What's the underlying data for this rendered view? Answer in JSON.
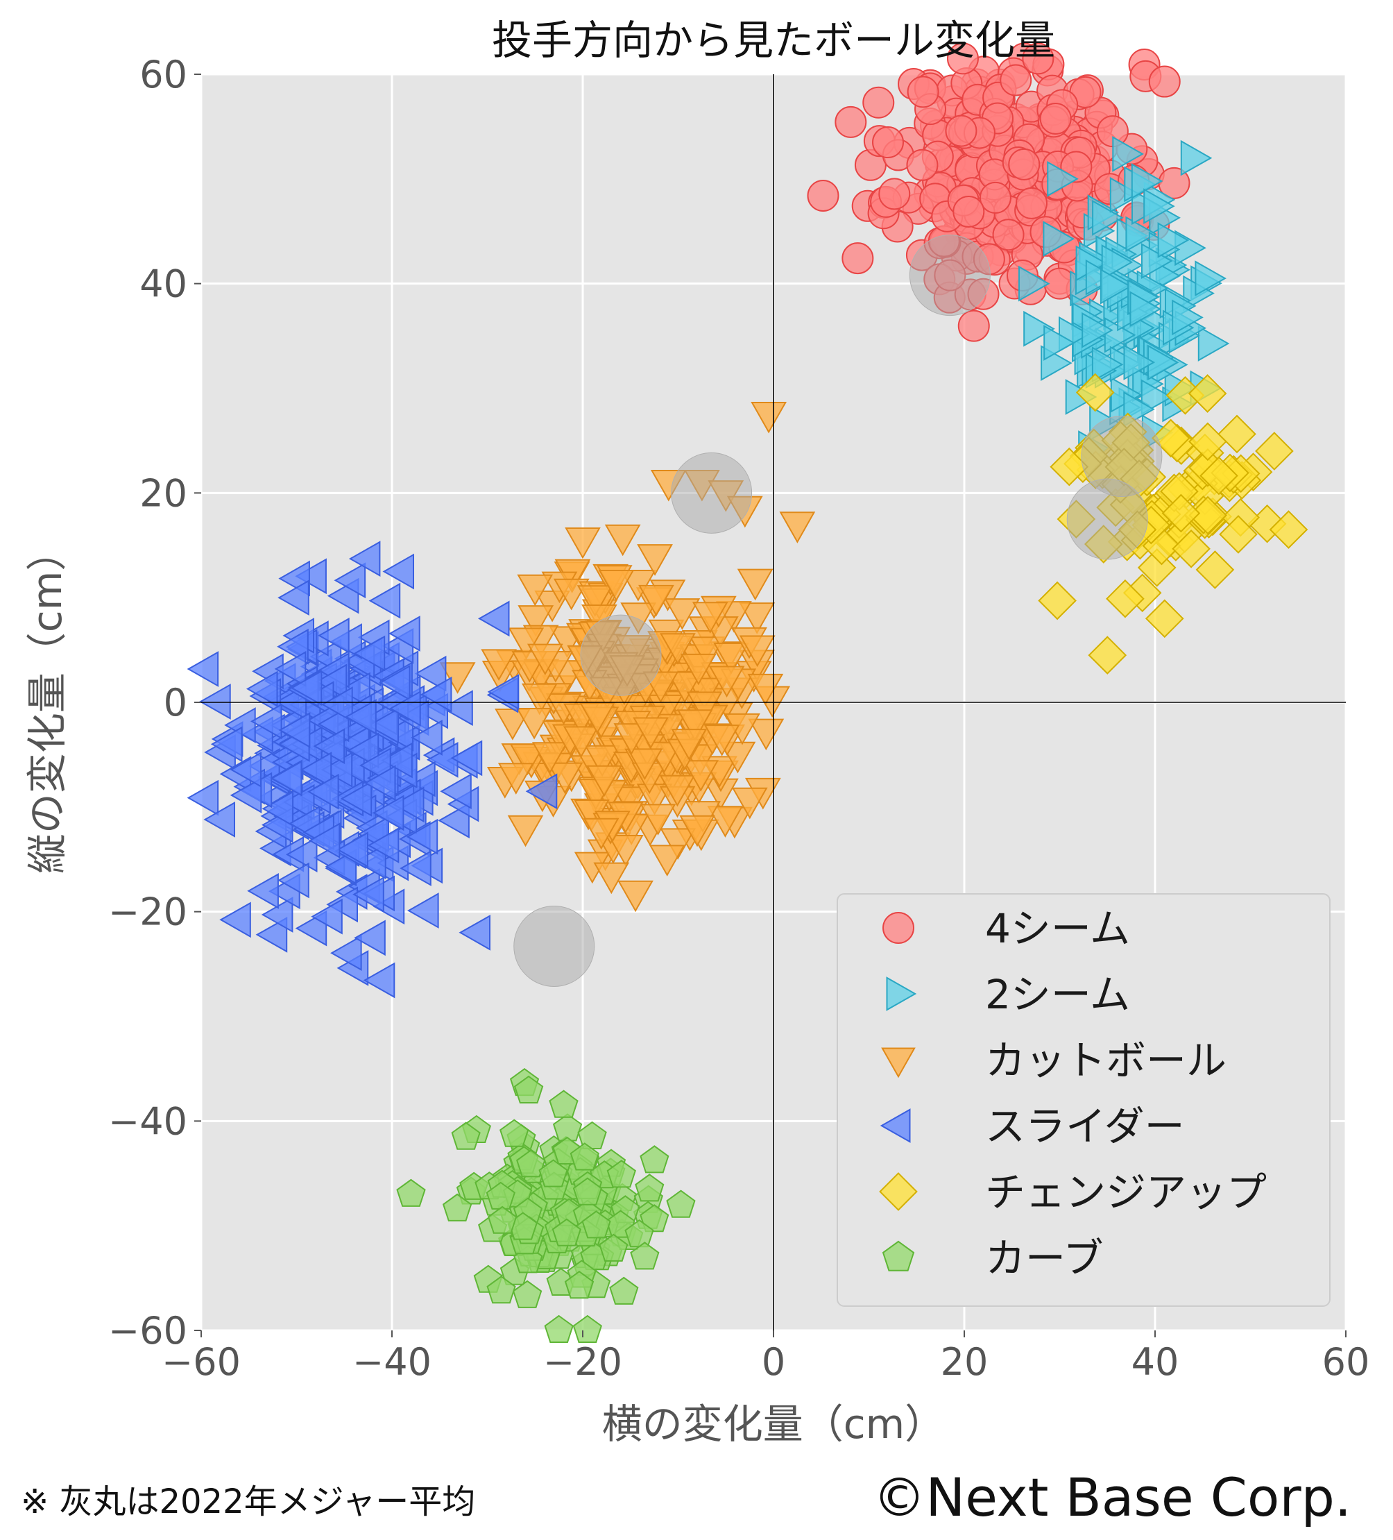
{
  "chart_data": {
    "type": "scatter",
    "title": "投手方向から見たボール変化量",
    "xlabel": "横の変化量（cm）",
    "ylabel": "縦の変化量（cm）",
    "xlim": [
      -60,
      60
    ],
    "ylim": [
      -60,
      60
    ],
    "x_ticks": [
      -60,
      -40,
      -20,
      0,
      20,
      40,
      60
    ],
    "y_ticks": [
      -60,
      -40,
      -20,
      0,
      20,
      40,
      60
    ],
    "x_tick_labels": [
      "−60",
      "−40",
      "−20",
      "0",
      "20",
      "40",
      "60"
    ],
    "y_tick_labels": [
      "−60",
      "−40",
      "−20",
      "0",
      "20",
      "40",
      "60"
    ],
    "grid": true,
    "legend_position": "bottom-right",
    "series": [
      {
        "name": "4シーム",
        "marker": "circle",
        "color": "#ff8080",
        "edge": "#e84545",
        "cluster": {
          "cx": 25.0,
          "cy": 51.0,
          "sx": 6.0,
          "sy": 5.0,
          "n": 300,
          "seed": 11
        },
        "points": [
          [
            18.5,
            40.8
          ],
          [
            5.2,
            48.4
          ],
          [
            41.0,
            59.3
          ],
          [
            42.0,
            49.6
          ],
          [
            11.0,
            57.3
          ],
          [
            12.0,
            53.5
          ],
          [
            30.0,
            40.0
          ],
          [
            22.0,
            39.0
          ]
        ]
      },
      {
        "name": "2シーム",
        "marker": "triangle-right",
        "color": "#5ccfe6",
        "edge": "#2aa8c4",
        "cluster": {
          "cx": 37.0,
          "cy": 37.0,
          "sx": 3.5,
          "sy": 5.0,
          "n": 110,
          "seed": 23
        },
        "points": [
          [
            44.0,
            52.0
          ],
          [
            30.0,
            50.0
          ],
          [
            27.0,
            40.0
          ],
          [
            45.5,
            40.5
          ],
          [
            45.0,
            30.0
          ],
          [
            38.0,
            28.0
          ]
        ]
      },
      {
        "name": "カットボール",
        "marker": "triangle-down",
        "color": "#ffae40",
        "edge": "#e08a1a",
        "cluster": {
          "cx": -14.5,
          "cy": 0.0,
          "sx": 6.0,
          "sy": 6.5,
          "n": 300,
          "seed": 37
        },
        "points": [
          [
            -0.5,
            27.5
          ],
          [
            2.5,
            17.0
          ],
          [
            -11.0,
            21.0
          ],
          [
            -7.5,
            21.0
          ],
          [
            -5.0,
            20.0
          ],
          [
            -3.0,
            18.5
          ],
          [
            -25.0,
            11.0
          ],
          [
            -20.0,
            15.5
          ],
          [
            -17.0,
            -16.5
          ],
          [
            -27.0,
            -7.0
          ],
          [
            -26.0,
            -12.0
          ],
          [
            -8.0,
            -12.0
          ]
        ]
      },
      {
        "name": "スライダー",
        "marker": "triangle-left",
        "color": "#5b82ff",
        "edge": "#3a5fe0",
        "cluster": {
          "cx": -44.5,
          "cy": -5.5,
          "sx": 6.0,
          "sy": 7.0,
          "n": 300,
          "seed": 53
        },
        "points": [
          [
            -50.0,
            10.0
          ],
          [
            -39.0,
            12.5
          ],
          [
            -29.0,
            8.0
          ],
          [
            -28.0,
            1.0
          ],
          [
            -57.0,
            -4.0
          ],
          [
            -50.0,
            -17.0
          ],
          [
            -42.0,
            -22.5
          ],
          [
            -31.0,
            -22.0
          ],
          [
            -24.0,
            -8.5
          ]
        ]
      },
      {
        "name": "チェンジアップ",
        "marker": "diamond",
        "color": "#ffe033",
        "edge": "#d4b000",
        "cluster": {
          "cx": 41.5,
          "cy": 19.0,
          "sx": 5.5,
          "sy": 4.5,
          "n": 75,
          "seed": 71
        },
        "points": [
          [
            35.0,
            4.5
          ],
          [
            41.0,
            8.0
          ],
          [
            54.0,
            16.5
          ],
          [
            52.5,
            24.0
          ],
          [
            45.5,
            29.5
          ],
          [
            31.0,
            22.5
          ]
        ]
      },
      {
        "name": "カーブ",
        "marker": "pentagon",
        "color": "#92d86a",
        "edge": "#5fb636",
        "cluster": {
          "cx": -22.0,
          "cy": -48.5,
          "sx": 4.5,
          "sy": 4.0,
          "n": 150,
          "seed": 89
        },
        "points": [
          [
            -38.0,
            -47.0
          ],
          [
            -22.0,
            -38.5
          ],
          [
            -22.5,
            -60.0
          ],
          [
            -19.5,
            -60.0
          ],
          [
            -13.0,
            -46.5
          ],
          [
            -13.5,
            -53.0
          ]
        ]
      }
    ],
    "league_average_markers": [
      [
        18.5,
        40.8
      ],
      [
        36.5,
        23.5
      ],
      [
        35.0,
        17.5
      ],
      [
        -6.5,
        20.0
      ],
      [
        -16.0,
        4.5
      ],
      [
        -23.0,
        -23.3
      ]
    ]
  },
  "footnote": "※ 灰丸は2022年メジャー平均",
  "copyright": "©Next Base Corp."
}
